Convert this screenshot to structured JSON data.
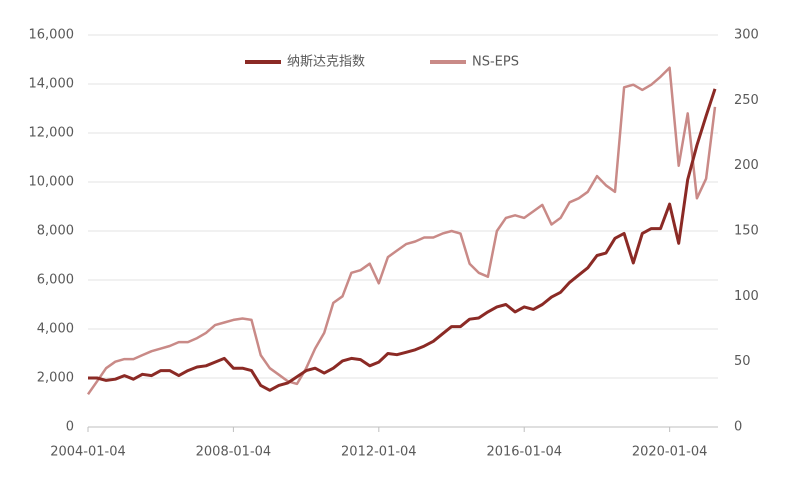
{
  "chart_data": {
    "type": "line",
    "x": [
      "2004-01-04",
      "2004-04-04",
      "2004-07-04",
      "2004-10-04",
      "2005-01-04",
      "2005-04-04",
      "2005-07-04",
      "2005-10-04",
      "2006-01-04",
      "2006-04-04",
      "2006-07-04",
      "2006-10-04",
      "2007-01-04",
      "2007-04-04",
      "2007-07-04",
      "2007-10-04",
      "2008-01-04",
      "2008-04-04",
      "2008-07-04",
      "2008-10-04",
      "2009-01-04",
      "2009-04-04",
      "2009-07-04",
      "2009-10-04",
      "2010-01-04",
      "2010-04-04",
      "2010-07-04",
      "2010-10-04",
      "2011-01-04",
      "2011-04-04",
      "2011-07-04",
      "2011-10-04",
      "2012-01-04",
      "2012-04-04",
      "2012-07-04",
      "2012-10-04",
      "2013-01-04",
      "2013-04-04",
      "2013-07-04",
      "2013-10-04",
      "2014-01-04",
      "2014-04-04",
      "2014-07-04",
      "2014-10-04",
      "2015-01-04",
      "2015-04-04",
      "2015-07-04",
      "2015-10-04",
      "2016-01-04",
      "2016-04-04",
      "2016-07-04",
      "2016-10-04",
      "2017-01-04",
      "2017-04-04",
      "2017-07-04",
      "2017-10-04",
      "2018-01-04",
      "2018-04-04",
      "2018-07-04",
      "2018-10-04",
      "2019-01-04",
      "2019-04-04",
      "2019-07-04",
      "2019-10-04",
      "2020-01-04",
      "2020-04-04",
      "2020-07-04",
      "2020-10-04",
      "2021-01-04",
      "2021-04-04"
    ],
    "series": [
      {
        "name": "纳斯达克指数",
        "color": "#8b2a25",
        "axis": "y",
        "values": [
          2000,
          2000,
          1900,
          1950,
          2100,
          1950,
          2150,
          2100,
          2300,
          2300,
          2100,
          2300,
          2450,
          2500,
          2650,
          2800,
          2400,
          2400,
          2300,
          1700,
          1500,
          1700,
          1800,
          2050,
          2300,
          2400,
          2200,
          2400,
          2700,
          2800,
          2750,
          2500,
          2650,
          3000,
          2950,
          3050,
          3150,
          3300,
          3500,
          3800,
          4100,
          4100,
          4400,
          4450,
          4700,
          4900,
          5000,
          4700,
          4900,
          4800,
          5000,
          5300,
          5500,
          5900,
          6200,
          6500,
          7000,
          7100,
          7700,
          7900,
          6700,
          7900,
          8100,
          8100,
          9100,
          7500,
          10100,
          11500,
          12700,
          13800
        ]
      },
      {
        "name": "NS-EPS",
        "color": "#c98a87",
        "axis": "y2",
        "values": [
          25,
          35,
          45,
          50,
          52,
          52,
          55,
          58,
          60,
          62,
          65,
          65,
          68,
          72,
          78,
          80,
          82,
          83,
          82,
          55,
          45,
          40,
          35,
          33,
          45,
          60,
          72,
          95,
          100,
          118,
          120,
          125,
          110,
          130,
          135,
          140,
          142,
          145,
          145,
          148,
          150,
          148,
          125,
          118,
          115,
          150,
          160,
          162,
          160,
          165,
          170,
          155,
          160,
          172,
          175,
          180,
          192,
          185,
          180,
          260,
          262,
          258,
          262,
          268,
          275,
          200,
          240,
          175,
          190,
          245
        ]
      }
    ],
    "xlim": [
      "2004-01-04",
      "2021-05-04"
    ],
    "xticks": [
      "2004-01-04",
      "2008-01-04",
      "2012-01-04",
      "2016-01-04",
      "2020-01-04"
    ],
    "ylim": [
      0,
      16000
    ],
    "yticks": [
      0,
      {
        "value": 2000,
        "label": "2,000"
      },
      {
        "value": 4000,
        "label": "4,000"
      },
      {
        "value": 6000,
        "label": "6,000"
      },
      {
        "value": 8000,
        "label": "8,000"
      },
      {
        "value": 10000,
        "label": "10,000"
      },
      {
        "value": 12000,
        "label": "12,000"
      },
      {
        "value": 14000,
        "label": "14,000"
      },
      {
        "value": 16000,
        "label": "16,000"
      }
    ],
    "y2lim": [
      0,
      300
    ],
    "y2ticks": [
      0,
      50,
      100,
      150,
      200,
      250,
      300
    ],
    "grid": true,
    "legend": "top"
  }
}
